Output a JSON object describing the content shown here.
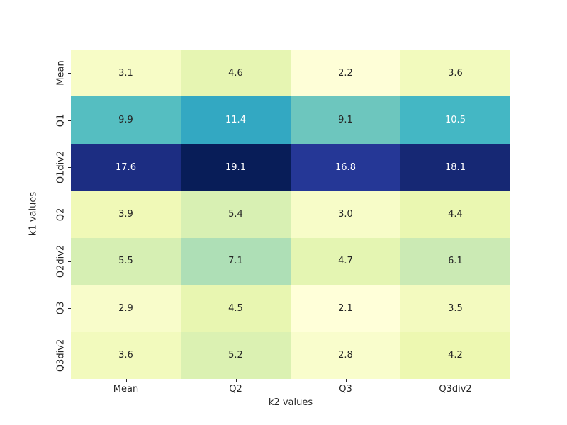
{
  "chart_data": {
    "type": "heatmap",
    "title": "",
    "xlabel": "k2 values",
    "ylabel": "k1 values",
    "columns": [
      "Mean",
      "Q2",
      "Q3",
      "Q3div2"
    ],
    "rows": [
      "Mean",
      "Q1",
      "Q1div2",
      "Q2",
      "Q2div2",
      "Q3",
      "Q3div2"
    ],
    "values": [
      [
        3.1,
        4.6,
        2.2,
        3.6
      ],
      [
        9.9,
        11.4,
        9.1,
        10.5
      ],
      [
        17.6,
        19.1,
        16.8,
        18.1
      ],
      [
        3.9,
        5.4,
        3.0,
        4.4
      ],
      [
        5.5,
        7.1,
        4.7,
        6.1
      ],
      [
        2.9,
        4.5,
        2.1,
        3.5
      ],
      [
        3.6,
        5.2,
        2.8,
        4.2
      ]
    ],
    "value_decimals": 1,
    "colormap": "YlGnBu",
    "vmin": 2.1,
    "vmax": 19.1,
    "legend": "none",
    "grid": false,
    "cell_colors": [
      [
        "#f7fcc6",
        "#e6f5b2",
        "#fefed7",
        "#f2fabd"
      ],
      [
        "#55bec1",
        "#33a8c2",
        "#6dc6be",
        "#44b7c4"
      ],
      [
        "#1c2d82",
        "#081d58",
        "#253796",
        "#162874"
      ],
      [
        "#f0f9b7",
        "#d8f0b3",
        "#f7fcc8",
        "#eaf7b1"
      ],
      [
        "#d6efb3",
        "#aedfb6",
        "#e4f5b2",
        "#cbeab4"
      ],
      [
        "#f8fcca",
        "#e8f6b1",
        "#ffffd9",
        "#f3fabf"
      ],
      [
        "#f2fabd",
        "#dbf1b2",
        "#f9fdcc",
        "#edf8b1"
      ]
    ],
    "text_colors": [
      [
        "#262626",
        "#262626",
        "#262626",
        "#262626"
      ],
      [
        "#262626",
        "#ffffff",
        "#262626",
        "#ffffff"
      ],
      [
        "#ffffff",
        "#ffffff",
        "#ffffff",
        "#ffffff"
      ],
      [
        "#262626",
        "#262626",
        "#262626",
        "#262626"
      ],
      [
        "#262626",
        "#262626",
        "#262626",
        "#262626"
      ],
      [
        "#262626",
        "#262626",
        "#262626",
        "#262626"
      ],
      [
        "#262626",
        "#262626",
        "#262626",
        "#262626"
      ]
    ]
  }
}
